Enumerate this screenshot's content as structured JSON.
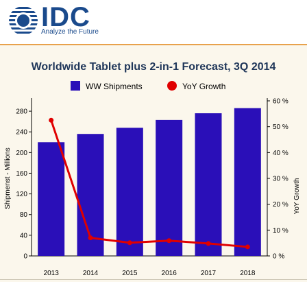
{
  "header": {
    "logo_text": "IDC",
    "tagline": "Analyze the Future",
    "logo_color": "#1a4a8c"
  },
  "colors": {
    "bar": "#2a0fb8",
    "line": "#e00000",
    "accent_rule": "#e8a24c",
    "panel_bg": "#fbf7ec"
  },
  "chart_data": {
    "type": "bar",
    "title": "Worldwide Tablet plus 2-in-1 Forecast, 3Q 2014",
    "categories": [
      "2013",
      "2014",
      "2015",
      "2016",
      "2017",
      "2018"
    ],
    "series": [
      {
        "name": "WW Shipments",
        "type": "bar",
        "axis": "left",
        "values": [
          220,
          236,
          248,
          263,
          276,
          286
        ]
      },
      {
        "name": "YoY Growth",
        "type": "line",
        "axis": "right",
        "unit": "%",
        "values": [
          52.5,
          7.0,
          5.1,
          5.9,
          4.8,
          3.5
        ]
      }
    ],
    "ylabel": "Shipmenst - Millions",
    "ylabel_right": "YoY Growth",
    "ylim": [
      0,
      300
    ],
    "ylim_right": [
      0,
      60
    ],
    "yticks": [
      "0",
      "40",
      "80",
      "120",
      "160",
      "200",
      "240",
      "280"
    ],
    "yticks_right": [
      "0 %",
      "10 %",
      "20 %",
      "30 %",
      "40 %",
      "50 %",
      "60 %"
    ],
    "grid": false,
    "legend": "top"
  }
}
